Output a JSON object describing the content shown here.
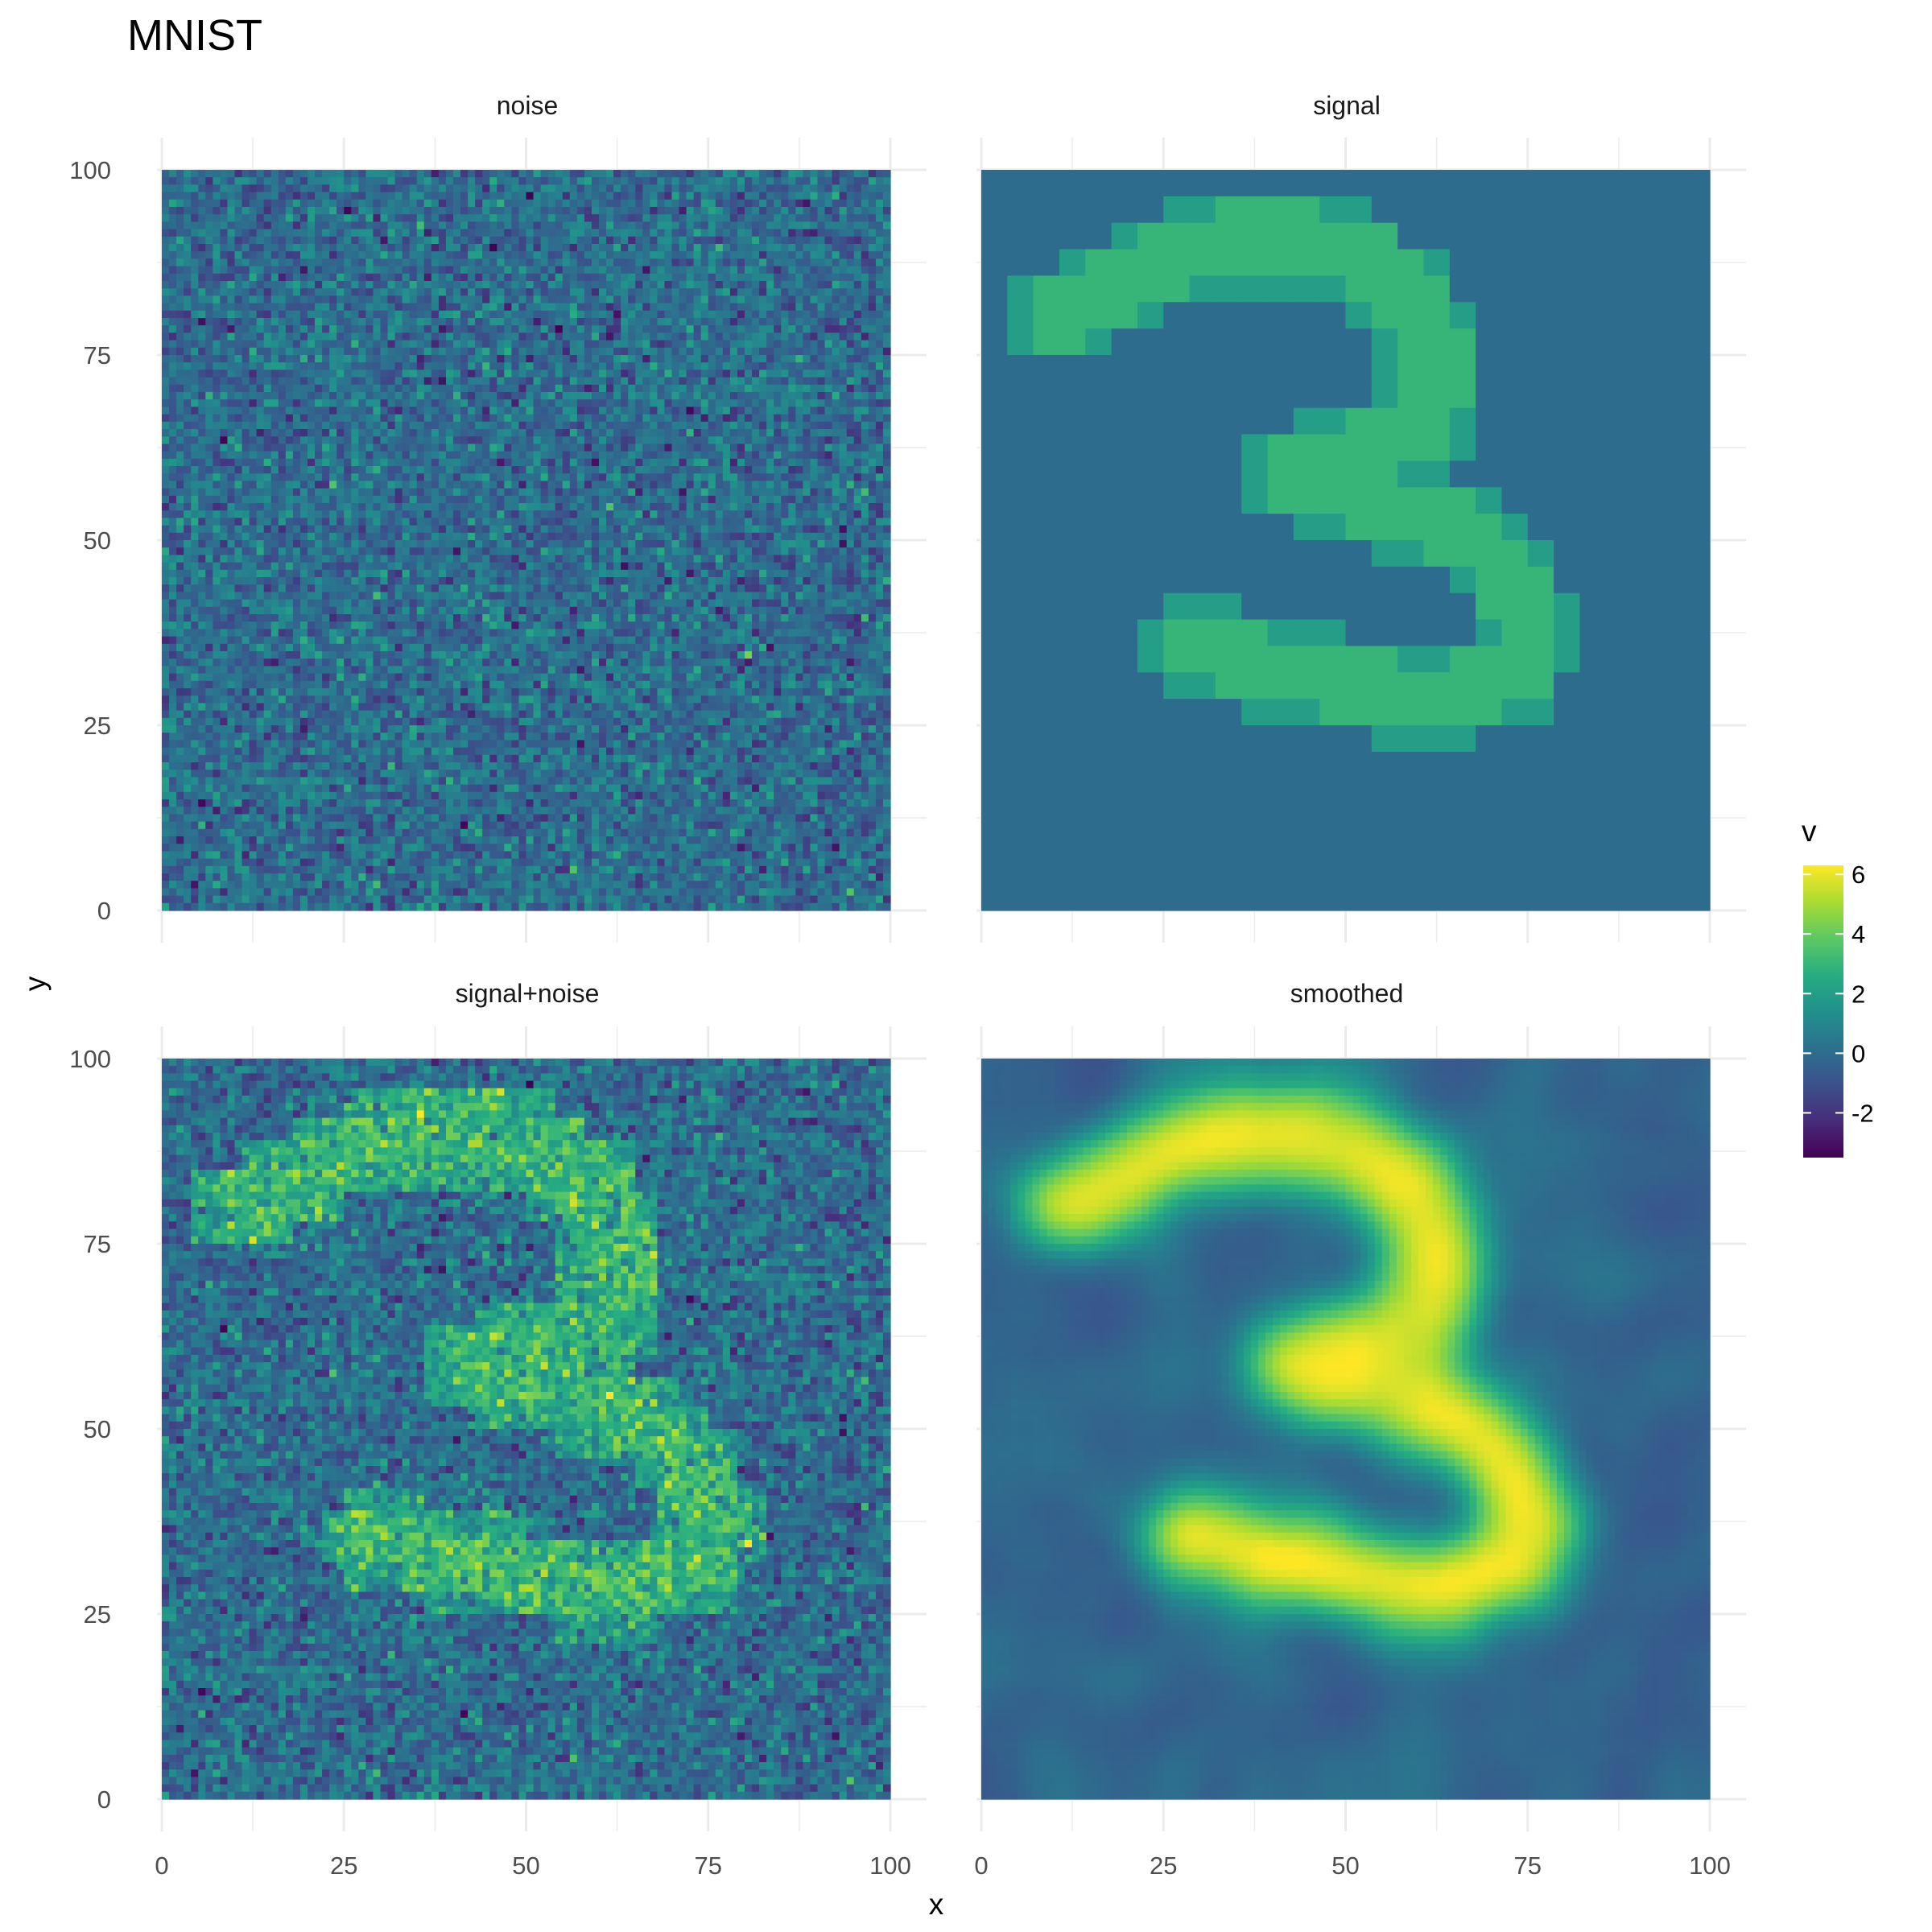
{
  "chart_data": {
    "type": "heatmap",
    "title": "MNIST",
    "xlabel": "x",
    "ylabel": "y",
    "xlim": [
      0,
      100
    ],
    "ylim": [
      0,
      100
    ],
    "x_ticks": [
      "0",
      "25",
      "50",
      "75",
      "100"
    ],
    "y_ticks": [
      "0",
      "25",
      "50",
      "75",
      "100"
    ],
    "grid": true,
    "colormap": "viridis",
    "legend": {
      "title": "v",
      "position": "right",
      "range": [
        -3.5,
        6.3
      ],
      "ticks": [
        "6",
        "4",
        "2",
        "0",
        "-2"
      ],
      "tick_values": [
        6,
        4,
        2,
        0,
        -2
      ]
    },
    "panels": [
      {
        "label": "noise",
        "grid_cols": 100,
        "grid_rows": 100,
        "description_value_mean": 0,
        "value_sd": 1
      },
      {
        "label": "signal",
        "grid_cols": 28,
        "grid_rows": 28,
        "background_value": 0,
        "digit_value": 3,
        "digit": "3"
      },
      {
        "label": "signal+noise",
        "grid_cols": 100,
        "grid_rows": 100,
        "digit": "3"
      },
      {
        "label": "smoothed",
        "grid_cols": 100,
        "grid_rows": 100,
        "peak_value": 6.3,
        "min_value": -3.5
      }
    ]
  }
}
